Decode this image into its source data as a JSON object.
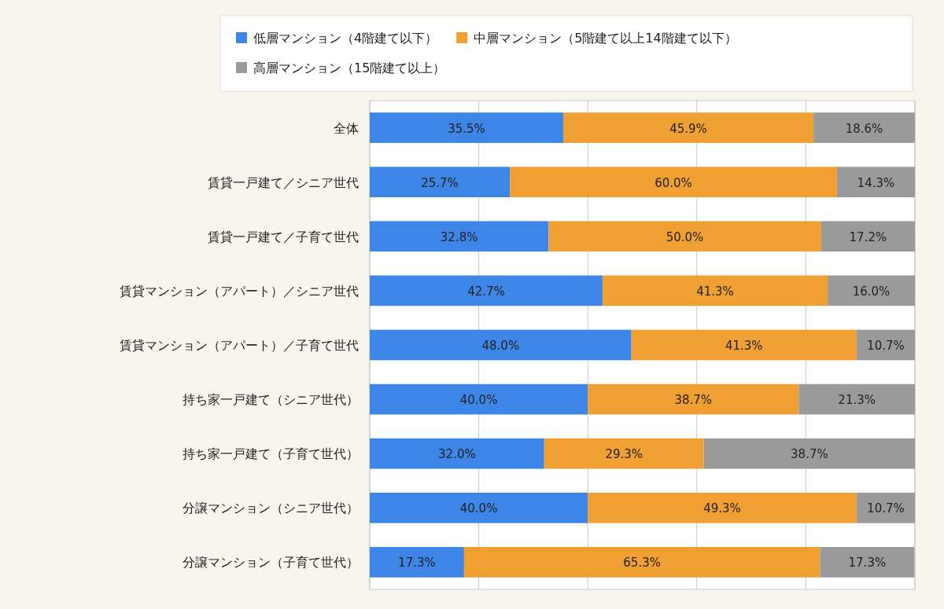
{
  "chart_data": {
    "type": "bar",
    "orientation": "horizontal",
    "stacked": true,
    "categories": [
      "全体",
      "賃貸一戸建て／シニア世代",
      "賃貸一戸建て／子育て世代",
      "賃貸マンション（アパート）／シニア世代",
      "賃貸マンション（アパート）／子育て世代",
      "持ち家一戸建て（シニア世代）",
      "持ち家一戸建て（子育て世代）",
      "分譲マンション（シニア世代）",
      "分譲マンション（子育て世代）"
    ],
    "series": [
      {
        "name": "低層マンション（4階建て以下）",
        "color": "#3d85e6",
        "values": [
          35.5,
          25.7,
          32.8,
          42.7,
          48.0,
          40.0,
          32.0,
          40.0,
          17.3
        ],
        "value_labels": [
          "35.5%",
          "25.7%",
          "32.8%",
          "42.7%",
          "48.0%",
          "40.0%",
          "32.0%",
          "40.0%",
          "17.3%"
        ]
      },
      {
        "name": "中層マンション（5階建て以上14階建て以下）",
        "color": "#f0a032",
        "values": [
          45.9,
          60.0,
          50.0,
          41.3,
          41.3,
          38.7,
          29.3,
          49.3,
          65.3
        ],
        "value_labels": [
          "45.9%",
          "60.0%",
          "50.0%",
          "41.3%",
          "41.3%",
          "38.7%",
          "29.3%",
          "49.3%",
          "65.3%"
        ]
      },
      {
        "name": "高層マンション（15階建て以上）",
        "color": "#9a9a9a",
        "values": [
          18.6,
          14.3,
          17.2,
          16.0,
          10.7,
          21.3,
          38.7,
          10.7,
          17.3
        ],
        "value_labels": [
          "18.6%",
          "14.3%",
          "17.2%",
          "16.0%",
          "10.7%",
          "21.3%",
          "38.7%",
          "10.7%",
          "17.3%"
        ]
      }
    ],
    "xlim": [
      0,
      100
    ],
    "xticks": [
      0,
      20,
      40,
      60,
      80,
      100
    ],
    "tick_labels": "y",
    "grid": "x",
    "legend": "top"
  }
}
